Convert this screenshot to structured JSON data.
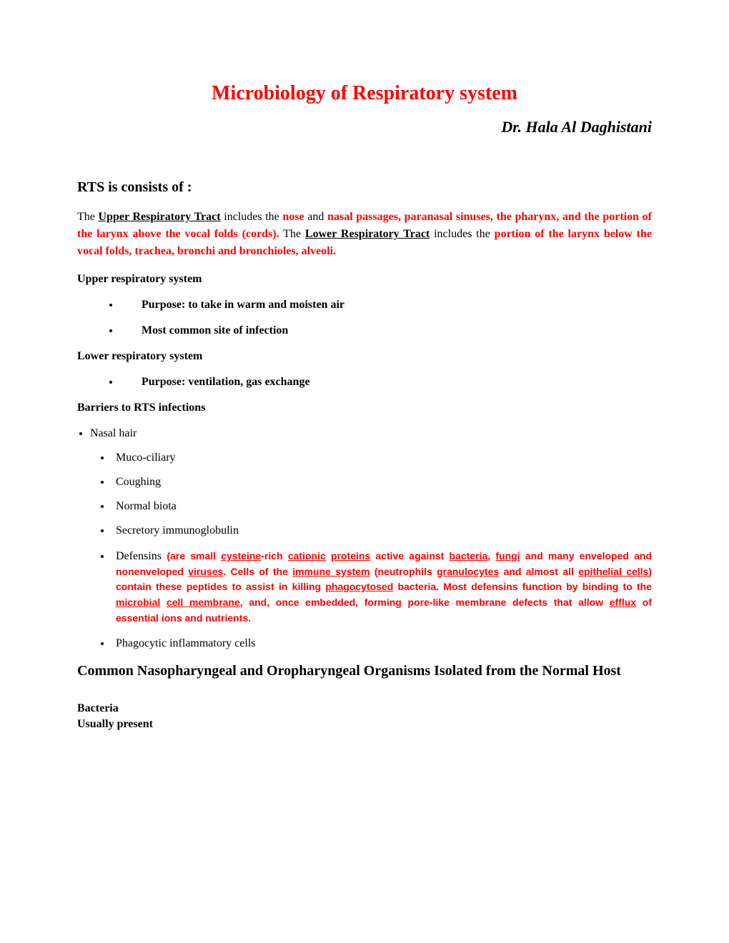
{
  "title": "Microbiology of Respiratory system",
  "author": "Dr. Hala Al Daghistani",
  "heading1": "RTS is consists of :",
  "para1": {
    "t1": "The ",
    "upperTract": "Upper Respiratory Tract",
    "t2": " includes the ",
    "nose": "nose",
    "t3": " and ",
    "upperParts": "nasal passages, paranasal sinuses, the pharynx, and the portion of the larynx above the vocal folds (cords).",
    "t4": " The ",
    "lowerTract": "Lower Respiratory Tract",
    "t5": " includes the ",
    "lowerParts": "portion of the larynx below the vocal folds, trachea, bronchi and bronchioles, alveoli."
  },
  "upperHead": "Upper respiratory system",
  "upperList": {
    "i0": "Purpose: to take in warm and moisten air",
    "i1": "Most common site of infection"
  },
  "lowerHead": "Lower respiratory system",
  "lowerList": {
    "i0": "Purpose: ventilation, gas exchange"
  },
  "barriersHead": "Barriers to RTS infections",
  "barriers": {
    "b0": " Nasal hair",
    "b1": "Muco-ciliary",
    "b2": "Coughing",
    "b3": " Normal biota",
    "b4": " Secretory immunoglobulin",
    "defLead": " Defensins ",
    "def": {
      "t1": "(are small ",
      "cysteine": "cysteine",
      "t2": "-rich ",
      "cationic": "cationic",
      "sp1": " ",
      "proteins": "proteins",
      "t3": "  active against ",
      "bacteria": "bacteria",
      "t4": ", ",
      "fungi": "fungi",
      "t5": " and many enveloped and nonenveloped ",
      "viruses": "viruses",
      "t6": ". Cells of the ",
      "immune": "immune system",
      "t7": " (neutrophils ",
      "granulocytes": "granulocytes",
      "t8": " and almost all ",
      "epithelial": "epithelial cells",
      "t9": ") contain these peptides to assist in killing ",
      "phago": "phagocytosed",
      "t10": " bacteria. Most defensins function by binding to the ",
      "microbial": "microbial",
      "sp2": " ",
      "cellmembrane": "cell membrane",
      "t11": ", and, once embedded, forming pore-like membrane defects that allow ",
      "efflux": "efflux",
      "t12": " of essential ions and nutrients",
      "period": "."
    },
    "b6": " Phagocytic inflammatory cells"
  },
  "commonHead": "Common Nasopharyngeal and Oropharyngeal Organisms Isolated from the Normal Host",
  "bacteria": {
    "l1": "Bacteria",
    "l2": "Usually present"
  }
}
